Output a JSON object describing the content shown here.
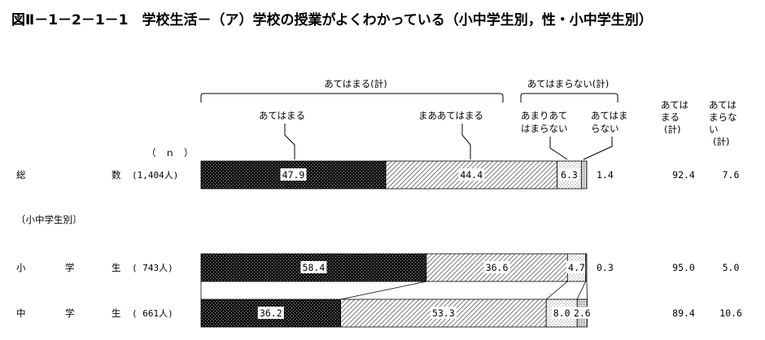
{
  "title": "図Ⅱ－1－2－1－1　学校生活－（ア）学校の授業がよくわかっている（小中学生別，性・小中学生別）",
  "n_header": "（　ｎ　）",
  "section_label": "〔小中学生別〕",
  "group_labels": {
    "agree_total": "あてはまる(計)",
    "disagree_total": "あてはまらない(計)"
  },
  "col_headers": {
    "agree": "あてはまる（計）",
    "disagree": "あてはまらない（計）"
  },
  "chart_data": {
    "type": "bar",
    "orientation": "horizontal",
    "stacked": true,
    "percent_scale": [
      0,
      100
    ],
    "series": [
      {
        "name": "あてはまる",
        "color": "#111111",
        "values": [
          47.9,
          58.4,
          36.2
        ]
      },
      {
        "name": "まああてはまる",
        "color": "#cccccc",
        "values": [
          44.4,
          36.6,
          53.3
        ]
      },
      {
        "name": "あまりあてはまらない",
        "color": "#f0f0f0",
        "values": [
          6.3,
          4.7,
          8.0
        ]
      },
      {
        "name": "あてはまらない",
        "color": "#888888",
        "values": [
          1.4,
          0.3,
          2.6
        ]
      }
    ],
    "categories": [
      {
        "label_left": "総",
        "label_right": "数",
        "n": "(1,404人)",
        "agree_total": "92.4",
        "disagree_total": "7.6"
      },
      {
        "label_left": "小",
        "label_mid": "学",
        "label_right": "生",
        "n": "( 743人)",
        "agree_total": "95.0",
        "disagree_total": "5.0"
      },
      {
        "label_left": "中",
        "label_mid": "学",
        "label_right": "生",
        "n": "( 661人)",
        "agree_total": "89.4",
        "disagree_total": "10.6"
      }
    ]
  }
}
